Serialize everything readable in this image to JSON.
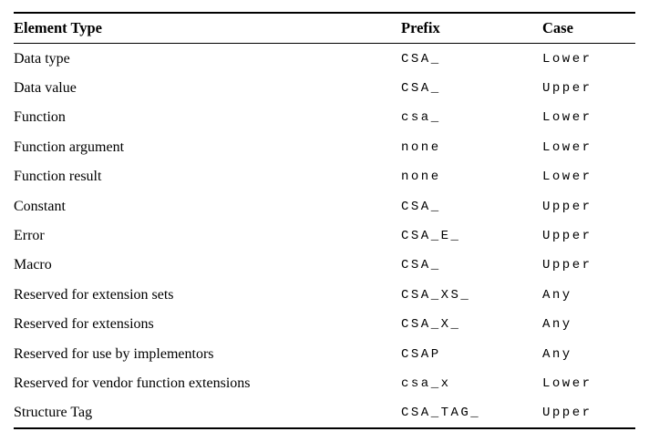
{
  "colors": {
    "background": "#ffffff",
    "text": "#000000",
    "rule": "#000000"
  },
  "table": {
    "columns": {
      "element_type": "Element Type",
      "prefix": "Prefix",
      "case": "Case"
    },
    "rows": [
      {
        "element_type": "Data type",
        "prefix": "CSA_",
        "case": "Lower"
      },
      {
        "element_type": "Data value",
        "prefix": "CSA_",
        "case": "Upper"
      },
      {
        "element_type": "Function",
        "prefix": "csa_",
        "case": "Lower"
      },
      {
        "element_type": "Function argument",
        "prefix": "none",
        "case": "Lower"
      },
      {
        "element_type": "Function result",
        "prefix": "none",
        "case": "Lower"
      },
      {
        "element_type": "Constant",
        "prefix": "CSA_",
        "case": "Upper"
      },
      {
        "element_type": "Error",
        "prefix": "CSA_E_",
        "case": "Upper"
      },
      {
        "element_type": "Macro",
        "prefix": "CSA_",
        "case": "Upper"
      },
      {
        "element_type": "Reserved for extension sets",
        "prefix": "CSA_XS_",
        "case": "Any"
      },
      {
        "element_type": "Reserved for extensions",
        "prefix": "CSA_X_",
        "case": "Any"
      },
      {
        "element_type": "Reserved for use by implementors",
        "prefix": "CSAP",
        "case": "Any"
      },
      {
        "element_type": "Reserved for vendor function extensions",
        "prefix": "csa_x",
        "case": "Lower"
      },
      {
        "element_type": "Structure Tag",
        "prefix": "CSA_TAG_",
        "case": "Upper"
      }
    ]
  }
}
